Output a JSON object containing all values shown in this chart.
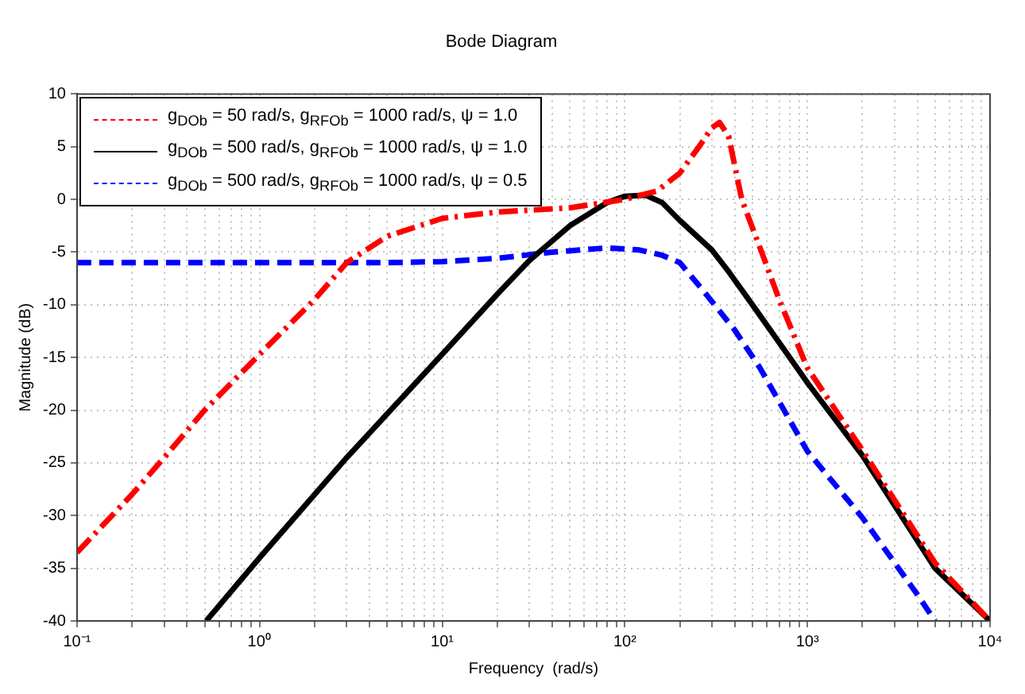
{
  "chart_data": {
    "type": "line",
    "title": "Bode Diagram",
    "xlabel": "Frequency  (rad/s)",
    "ylabel": "Magnitude (dB)",
    "log": "x",
    "grid": true,
    "legend": "top left",
    "marker": "none",
    "xlim": [
      0.1,
      10000
    ],
    "ylim": [
      -40,
      10
    ],
    "xticks": [
      {
        "value": 0.1,
        "label": "10⁻¹"
      },
      {
        "value": 0.2,
        "label": null
      },
      {
        "value": 0.3,
        "label": null
      },
      {
        "value": 0.4,
        "label": null
      },
      {
        "value": 0.5,
        "label": null
      },
      {
        "value": 0.6,
        "label": null
      },
      {
        "value": 0.7,
        "label": null
      },
      {
        "value": 0.8,
        "label": null
      },
      {
        "value": 0.9,
        "label": null
      },
      {
        "value": 1,
        "label": "10⁰"
      },
      {
        "value": 2,
        "label": null
      },
      {
        "value": 3,
        "label": null
      },
      {
        "value": 4,
        "label": null
      },
      {
        "value": 5,
        "label": null
      },
      {
        "value": 6,
        "label": null
      },
      {
        "value": 7,
        "label": null
      },
      {
        "value": 8,
        "label": null
      },
      {
        "value": 9,
        "label": null
      },
      {
        "value": 10,
        "label": "10¹"
      },
      {
        "value": 20,
        "label": null
      },
      {
        "value": 30,
        "label": null
      },
      {
        "value": 40,
        "label": null
      },
      {
        "value": 50,
        "label": null
      },
      {
        "value": 60,
        "label": null
      },
      {
        "value": 70,
        "label": null
      },
      {
        "value": 80,
        "label": null
      },
      {
        "value": 90,
        "label": null
      },
      {
        "value": 100,
        "label": "10²"
      },
      {
        "value": 200,
        "label": null
      },
      {
        "value": 300,
        "label": null
      },
      {
        "value": 400,
        "label": null
      },
      {
        "value": 500,
        "label": null
      },
      {
        "value": 600,
        "label": null
      },
      {
        "value": 700,
        "label": null
      },
      {
        "value": 800,
        "label": null
      },
      {
        "value": 900,
        "label": null
      },
      {
        "value": 1000,
        "label": "10³"
      },
      {
        "value": 2000,
        "label": null
      },
      {
        "value": 3000,
        "label": null
      },
      {
        "value": 4000,
        "label": null
      },
      {
        "value": 5000,
        "label": null
      },
      {
        "value": 6000,
        "label": null
      },
      {
        "value": 7000,
        "label": null
      },
      {
        "value": 8000,
        "label": null
      },
      {
        "value": 9000,
        "label": null
      },
      {
        "value": 10000,
        "label": "10⁴"
      }
    ],
    "yticks": [
      -40,
      -35,
      -30,
      -25,
      -20,
      -15,
      -10,
      -5,
      0,
      5,
      10
    ],
    "series": [
      {
        "name": "g$_{DOb}$ = 50 rad/s, g$_{RFOb}$ = 1000 rad/s, ψ = 1.0",
        "color": "#ff0000",
        "line_style": "dashdot",
        "x": [
          0.1,
          0.2,
          0.3,
          0.5,
          1,
          2,
          3,
          5,
          10,
          20,
          50,
          100,
          150,
          200,
          250,
          300,
          330,
          370,
          437,
          590,
          700,
          1000,
          2000,
          5000,
          10000
        ],
        "values": [
          -33.5,
          -28,
          -24.5,
          -20,
          -14.7,
          -9.5,
          -6,
          -3.5,
          -1.8,
          -1.2,
          -0.8,
          0,
          0.8,
          2.5,
          4.8,
          6.8,
          7.3,
          6,
          0,
          -6,
          -9.5,
          -16,
          -23.8,
          -34.5,
          -40
        ]
      },
      {
        "name": "g$_{DOb}$ = 500 rad/s, g$_{RFOb}$ = 1000 rad/s, ψ = 1.0",
        "color": "#000000",
        "line_style": "solid",
        "x": [
          0.51,
          1,
          3,
          10,
          20,
          30,
          50,
          80,
          100,
          130,
          160,
          200,
          300,
          372,
          500,
          800,
          1000,
          2000,
          5000,
          10000
        ],
        "values": [
          -40,
          -34,
          -24.5,
          -14.7,
          -9,
          -5.8,
          -2.5,
          -0.3,
          0.3,
          0.4,
          -0.3,
          -2,
          -4.8,
          -6.9,
          -10,
          -15,
          -17.4,
          -24.3,
          -35,
          -40
        ]
      },
      {
        "name": "g$_{DOb}$ = 500 rad/s, g$_{RFOb}$ = 1000 rad/s, ψ = 0.5",
        "color": "#0000ff",
        "line_style": "dashed",
        "x": [
          0.1,
          1,
          5,
          10,
          20,
          40,
          80,
          120,
          160,
          200,
          270,
          400,
          550,
          1000,
          2000,
          4000,
          5000
        ],
        "values": [
          -6,
          -6,
          -6,
          -5.9,
          -5.6,
          -5,
          -4.6,
          -4.8,
          -5.3,
          -6,
          -8.7,
          -12.4,
          -16,
          -23.9,
          -30.2,
          -37.5,
          -40
        ]
      }
    ]
  }
}
